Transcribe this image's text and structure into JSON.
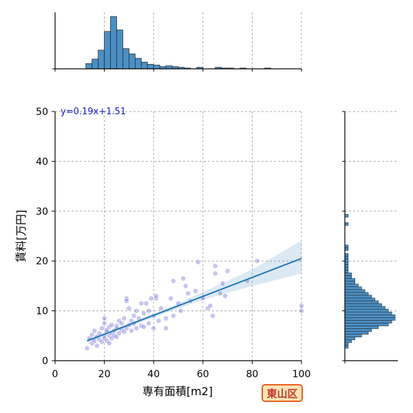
{
  "chart_data": [
    {
      "type": "scatter",
      "xlabel": "専有面積[m2]",
      "ylabel": "賃料[万円]",
      "xlim": [
        0,
        100
      ],
      "ylim": [
        0,
        50
      ],
      "xticks": [
        0,
        20,
        40,
        60,
        80,
        100
      ],
      "yticks": [
        0,
        10,
        20,
        30,
        40,
        50
      ],
      "grid": true,
      "annotation": "y=0.19x+1.51",
      "regression": {
        "slope": 0.19,
        "intercept": 1.51,
        "x_start": 13,
        "x_end": 100
      },
      "confidence_band": [
        {
          "x": 13,
          "lo": 3.6,
          "hi": 4.4
        },
        {
          "x": 30,
          "lo": 6.8,
          "hi": 7.4
        },
        {
          "x": 45,
          "lo": 9.6,
          "hi": 10.4
        },
        {
          "x": 60,
          "lo": 12.2,
          "hi": 13.8
        },
        {
          "x": 80,
          "lo": 15.0,
          "hi": 18.3
        },
        {
          "x": 100,
          "lo": 17.5,
          "hi": 24.1
        }
      ],
      "points": [
        [
          13,
          2.5
        ],
        [
          14,
          4.5
        ],
        [
          15,
          5.2
        ],
        [
          15,
          3.5
        ],
        [
          16,
          4.0
        ],
        [
          16,
          6.0
        ],
        [
          17,
          4.8
        ],
        [
          17,
          3.0
        ],
        [
          18,
          5.5
        ],
        [
          18,
          4.2
        ],
        [
          19,
          6.5
        ],
        [
          19,
          3.8
        ],
        [
          20,
          7.5
        ],
        [
          20,
          5.0
        ],
        [
          20,
          8.5
        ],
        [
          20,
          4.5
        ],
        [
          21,
          4.0
        ],
        [
          21,
          5.8
        ],
        [
          21,
          6.2
        ],
        [
          22,
          5.0
        ],
        [
          22,
          3.5
        ],
        [
          22,
          6.8
        ],
        [
          23,
          4.5
        ],
        [
          23,
          5.5
        ],
        [
          23,
          7.2
        ],
        [
          24,
          6.0
        ],
        [
          24,
          5.0
        ],
        [
          25,
          7.0
        ],
        [
          25,
          4.8
        ],
        [
          25,
          6.5
        ],
        [
          26,
          8.0
        ],
        [
          26,
          5.5
        ],
        [
          27,
          6.2
        ],
        [
          27,
          7.5
        ],
        [
          28,
          5.8
        ],
        [
          28,
          8.5
        ],
        [
          29,
          12.5
        ],
        [
          29,
          12.0
        ],
        [
          29,
          6.5
        ],
        [
          30,
          7.2
        ],
        [
          30,
          10.5
        ],
        [
          31,
          8.0
        ],
        [
          31,
          6.0
        ],
        [
          32,
          9.0
        ],
        [
          32,
          7.5
        ],
        [
          33,
          10.0
        ],
        [
          33,
          6.5
        ],
        [
          34,
          8.5
        ],
        [
          35,
          11.5
        ],
        [
          35,
          7.0
        ],
        [
          36,
          9.5
        ],
        [
          36,
          6.8
        ],
        [
          37,
          11.5
        ],
        [
          38,
          10.0
        ],
        [
          38,
          7.5
        ],
        [
          39,
          12.5
        ],
        [
          40,
          9.0
        ],
        [
          40,
          6.5
        ],
        [
          41,
          12.5
        ],
        [
          41,
          13.0
        ],
        [
          42,
          8.0
        ],
        [
          43,
          10.5
        ],
        [
          45,
          8.5
        ],
        [
          45,
          6.5
        ],
        [
          47,
          12.5
        ],
        [
          48,
          9.0
        ],
        [
          48,
          16.0
        ],
        [
          50,
          11.5
        ],
        [
          51,
          10.0
        ],
        [
          52,
          16.5
        ],
        [
          53,
          15.0
        ],
        [
          54,
          13.5
        ],
        [
          55,
          12.0
        ],
        [
          57,
          14.0
        ],
        [
          58,
          19.8
        ],
        [
          60,
          12.5
        ],
        [
          62,
          10.5
        ],
        [
          63,
          11.0
        ],
        [
          64,
          9.0
        ],
        [
          65,
          19.0
        ],
        [
          65,
          17.5
        ],
        [
          67,
          13.5
        ],
        [
          68,
          15.5
        ],
        [
          69,
          13.0
        ],
        [
          70,
          18.0
        ],
        [
          78,
          16.0
        ],
        [
          82,
          20.0
        ],
        [
          100,
          11.0
        ],
        [
          100,
          10.0
        ]
      ]
    },
    {
      "type": "bar",
      "title": "",
      "xlabel": "",
      "ylabel": "",
      "orientation": "vertical",
      "bin_start": 12.5,
      "bin_width": 2.5,
      "counts": [
        7,
        13,
        25,
        50,
        70,
        52,
        27,
        20,
        14,
        9,
        6,
        5,
        3,
        4,
        3,
        2,
        1,
        0,
        2,
        0,
        0,
        2,
        1,
        1,
        0,
        1,
        0,
        0,
        0,
        1,
        0
      ]
    },
    {
      "type": "bar",
      "title": "",
      "xlabel": "",
      "ylabel": "",
      "orientation": "horizontal",
      "bin_start": 2.5,
      "bin_width": 0.56,
      "counts": [
        1,
        1,
        2,
        3,
        5,
        7,
        8,
        10,
        13,
        14,
        15,
        15,
        14,
        13,
        12,
        11,
        10,
        9,
        8,
        7,
        6,
        5,
        4,
        3,
        3,
        2,
        2,
        1,
        1,
        1,
        1,
        1,
        1,
        1,
        0,
        1,
        1,
        0,
        0,
        0,
        0,
        0,
        0,
        0,
        1,
        0,
        0,
        1,
        0,
        0,
        0,
        0,
        0,
        0,
        0,
        0,
        0,
        0,
        0,
        0,
        0,
        0,
        0,
        0,
        0,
        0,
        0,
        0,
        0,
        0,
        0,
        0,
        0,
        0,
        0,
        0,
        0,
        0,
        0,
        0,
        0,
        0,
        0,
        0,
        0,
        0,
        0,
        0,
        0,
        0,
        0,
        0,
        0,
        0,
        0,
        0,
        0,
        0,
        0,
        0,
        0,
        0,
        0,
        0,
        0,
        0,
        0,
        0,
        0,
        0,
        0,
        0,
        0,
        0,
        0,
        0,
        0,
        0,
        0,
        0,
        0,
        0,
        0,
        0,
        0,
        0,
        0,
        0,
        0,
        0,
        0,
        0,
        1,
        0,
        0,
        0,
        1,
        1
      ]
    }
  ],
  "badge": {
    "label": "東山区"
  }
}
